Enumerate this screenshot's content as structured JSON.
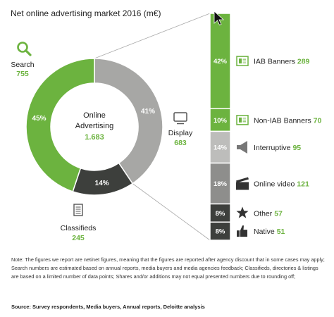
{
  "title": "Net online advertising market 2016 (m€)",
  "note": "Note: The figures we report are net/net figures, meaning that the figures are reported after agency discount that in some cases may apply; Search numbers are estimated based on annual reports, media buyers and media agencies feedback; Classifieds, directories & listings are based on a limited number of data points; Shares and/or additions may not equal presented numbers due to rounding off;",
  "source": "Source: Survey respondents, Media buyers, Annual reports, Deloitte analysis",
  "colors": {
    "green": "#6cb33f",
    "grey": "#a7a7a5",
    "dark": "#3d3f3c",
    "light_grey": "#bdbdbb",
    "mid_grey": "#8e8e8c",
    "text": "#222222"
  },
  "chart_data": [
    {
      "type": "pie",
      "donut": true,
      "center_label": "Online\nAdvertising",
      "center_value": "1.683",
      "slices": [
        {
          "name": "Search",
          "value": 755,
          "value_label": "755",
          "pct_label": "45%",
          "color": "#6cb33f",
          "icon": "search-icon"
        },
        {
          "name": "Display",
          "value": 683,
          "value_label": "683",
          "pct_label": "41%",
          "color": "#a7a7a5",
          "icon": "monitor-icon"
        },
        {
          "name": "Classifieds",
          "value": 245,
          "value_label": "245",
          "pct_label": "14%",
          "color": "#3d3f3c",
          "icon": "document-icon"
        }
      ]
    },
    {
      "type": "bar",
      "stacked": true,
      "orientation": "vertical",
      "parent": "Display",
      "categories": [
        "IAB Banners",
        "Non-IAB Banners",
        "Interruptive",
        "Online video",
        "Other",
        "Native"
      ],
      "values": [
        289,
        70,
        95,
        121,
        57,
        51
      ],
      "pct_labels": [
        "42%",
        "10%",
        "14%",
        "18%",
        "8%",
        "8%"
      ],
      "shares": [
        42,
        10,
        14,
        18,
        8,
        8
      ],
      "colors": [
        "#6cb33f",
        "#6cb33f",
        "#bdbdbb",
        "#8e8e8c",
        "#3d3f3c",
        "#3d3f3c"
      ],
      "icons": [
        "banner-icon",
        "banner-icon",
        "megaphone-icon",
        "clapperboard-icon",
        "star-icon",
        "thumbs-up-icon"
      ]
    }
  ]
}
